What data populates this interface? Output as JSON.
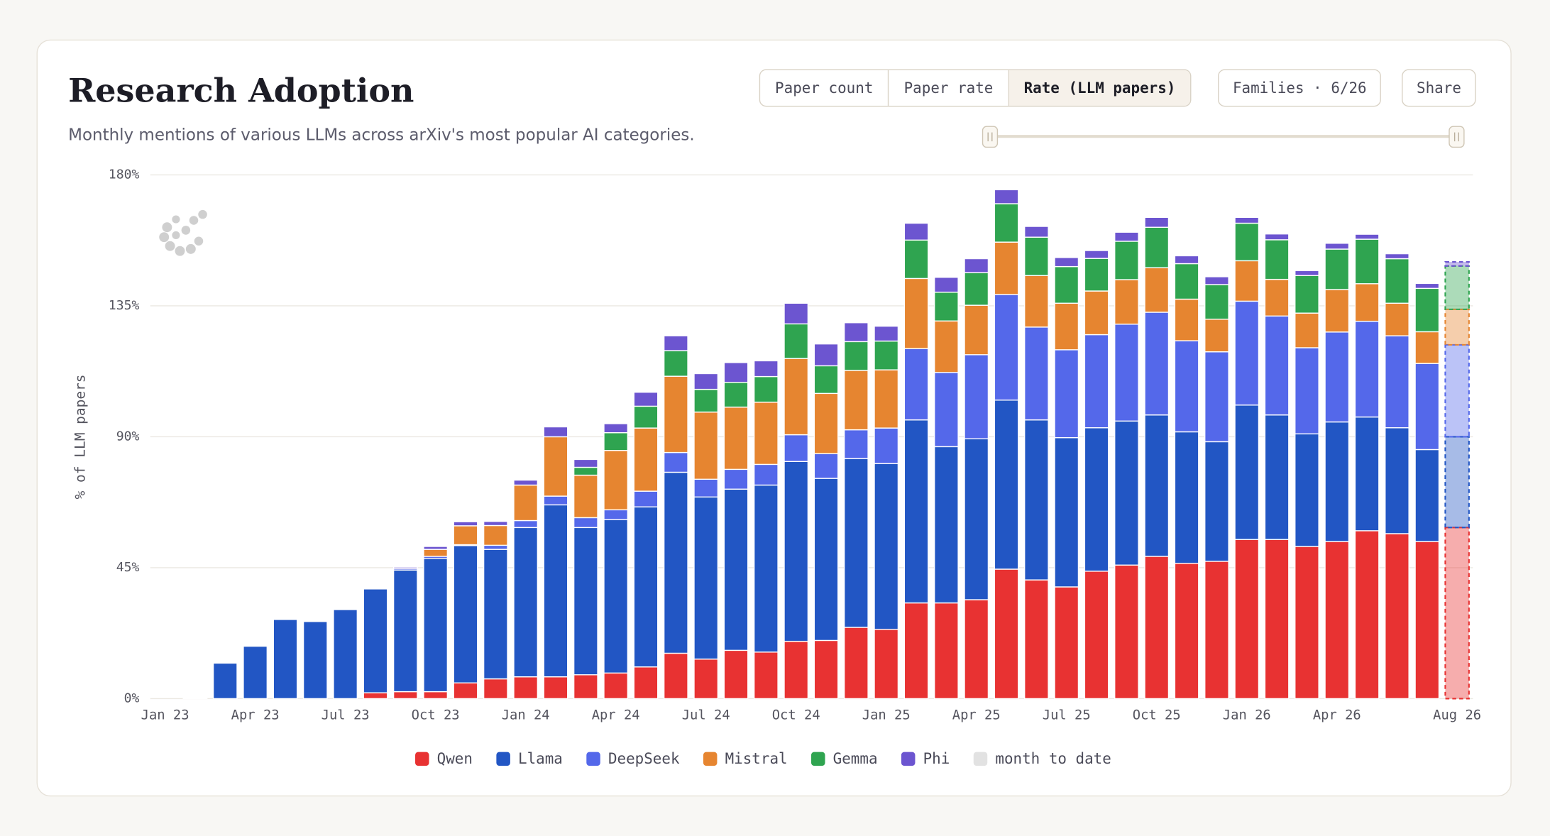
{
  "header": {
    "title": "Research Adoption",
    "subtitle": "Monthly mentions of various LLMs across arXiv's most popular AI categories."
  },
  "controls": {
    "tabs": [
      "Paper count",
      "Paper rate",
      "Rate (LLM papers)"
    ],
    "families": "Families · 6/26",
    "share": "Share"
  },
  "chart_data": {
    "type": "stacked_bar",
    "y_label": "% of LLM papers",
    "categories": [
      "Jan 23",
      null,
      null,
      "Apr 23",
      null,
      null,
      "Jul 23",
      null,
      null,
      "Oct 23",
      null,
      null,
      "Jan 24",
      null,
      null,
      "Apr 24",
      null,
      null,
      "Jul 24",
      null,
      null,
      "Oct 24",
      null,
      null,
      "Jan 25",
      null,
      null,
      "Apr 25",
      null,
      null,
      "Jul 25",
      null,
      null,
      "Oct 25",
      null,
      null,
      "Jan 26",
      null,
      null,
      "Apr 26",
      null,
      null,
      null,
      "Aug 26"
    ],
    "ylim": [
      0,
      180
    ],
    "yticks": [
      {
        "value": 0,
        "label": "0%"
      },
      {
        "value": 45,
        "label": "45%"
      },
      {
        "value": 90,
        "label": "90%"
      },
      {
        "value": 135,
        "label": "135%"
      },
      {
        "value": 180,
        "label": "180%"
      }
    ],
    "grid": true,
    "month_to_date": {
      "name": "month to date",
      "color": "#e2e2e2"
    },
    "series": [
      {
        "name": "Qwen",
        "color": "#e83232",
        "values": [
          0,
          0,
          0,
          0,
          0,
          0,
          0,
          2,
          2.4,
          2.4,
          5.4,
          6.8,
          7.5,
          7.5,
          8.2,
          8.8,
          10.9,
          15.6,
          13.6,
          16.6,
          16,
          19.7,
          20,
          24.5,
          23.8,
          32.9,
          32.9,
          34,
          44.5,
          40.8,
          38.4,
          43.8,
          45.9,
          48.9,
          46.5,
          47.2,
          54.7,
          54.7,
          52.3,
          54,
          57.7,
          56.7,
          54,
          58.8
        ]
      },
      {
        "name": "Llama",
        "color": "#2256c4",
        "values": [
          0,
          0.3,
          12.2,
          18,
          27.2,
          26.5,
          30.6,
          35.7,
          41.8,
          45.8,
          47.2,
          44.5,
          51.3,
          59.1,
          50.6,
          52.7,
          55,
          62.2,
          55.7,
          55.4,
          57.4,
          61.8,
          55.7,
          58,
          57,
          62.9,
          53.7,
          55.3,
          58.1,
          55,
          51.3,
          49.3,
          49.5,
          48.6,
          45.2,
          41.1,
          46.2,
          42.8,
          38.7,
          41.1,
          39.1,
          36.4,
          31.6,
          31.2
        ]
      },
      {
        "name": "DeepSeek",
        "color": "#5468ea",
        "values": [
          0,
          0,
          0,
          0,
          0,
          0,
          0,
          0,
          0.5,
          0.7,
          0.3,
          1.4,
          2.4,
          3,
          3.4,
          3.4,
          5.4,
          6.8,
          6.1,
          6.8,
          7.1,
          9.2,
          8.5,
          9.9,
          12.2,
          24.5,
          25.5,
          28.9,
          36.3,
          31.9,
          30.2,
          32,
          33.3,
          35.3,
          31.3,
          30.9,
          35.7,
          34,
          29.6,
          30.9,
          32.9,
          31.6,
          29.6,
          31.6
        ]
      },
      {
        "name": "Mistral",
        "color": "#e68530",
        "values": [
          0,
          0,
          0,
          0,
          0,
          0,
          0,
          0,
          0,
          2.4,
          6.5,
          6.8,
          12.2,
          20.4,
          14.6,
          20.4,
          21.7,
          26.2,
          23.1,
          21.4,
          21.4,
          26.2,
          20.7,
          20.4,
          20,
          24.1,
          17.7,
          17,
          18,
          17.7,
          16,
          15,
          15.3,
          15.3,
          14.3,
          11.2,
          13.9,
          12.6,
          11.9,
          14.6,
          12.9,
          11.2,
          10.9,
          12.2
        ]
      },
      {
        "name": "Gemma",
        "color": "#2fa450",
        "values": [
          0,
          0,
          0,
          0,
          0,
          0,
          0,
          0,
          0,
          0,
          0,
          0,
          0,
          0,
          2.7,
          6.1,
          7.5,
          8.8,
          7.8,
          8.5,
          8.8,
          11.9,
          9.5,
          9.9,
          9.9,
          13.2,
          9.9,
          11.2,
          13.2,
          13.2,
          12.6,
          11.2,
          13.2,
          13.9,
          12.2,
          11.9,
          12.9,
          13.6,
          12.9,
          13.9,
          15.3,
          15.3,
          14.9,
          14.9
        ]
      },
      {
        "name": "Phi",
        "color": "#6c55d0",
        "values": [
          0,
          0,
          0,
          0,
          0,
          0,
          0,
          0,
          0.5,
          1,
          1.4,
          1.4,
          1.7,
          3.4,
          2.7,
          3.1,
          4.8,
          5.1,
          5.4,
          6.8,
          5.4,
          7.1,
          7.5,
          6.5,
          5.1,
          5.8,
          5.1,
          4.8,
          4.8,
          3.7,
          3.1,
          2.7,
          3.1,
          3.4,
          2.7,
          2.7,
          2,
          2,
          1.7,
          2,
          1.7,
          1.7,
          1.7,
          1.4
        ]
      }
    ]
  }
}
